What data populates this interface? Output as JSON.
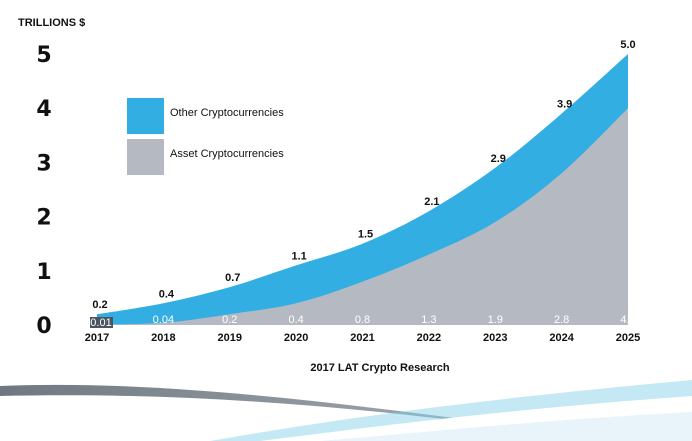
{
  "chart_data": {
    "type": "area",
    "stacked": true,
    "unit_label": "TRILLIONS $",
    "x": [
      "2017",
      "2018",
      "2019",
      "2020",
      "2021",
      "2022",
      "2023",
      "2024",
      "2025"
    ],
    "y_ticks": [
      "0",
      "1",
      "2",
      "3",
      "4",
      "5"
    ],
    "ylim": [
      0,
      5
    ],
    "grid": false,
    "legend_position": "top-left",
    "series": [
      {
        "name": "Asset Cryptocurrencies",
        "color": "#b5bac2",
        "values": [
          0.01,
          0.04,
          0.2,
          0.4,
          0.8,
          1.3,
          1.9,
          2.8,
          4.0
        ],
        "labels": [
          "0.01",
          "0.04",
          "0.2",
          "0.4",
          "0.8",
          "1.3",
          "1.9",
          "2.8",
          "4.0"
        ]
      },
      {
        "name": "Other Cryptocurrencies",
        "color": "#33aee3",
        "totals": [
          0.2,
          0.4,
          0.7,
          1.1,
          1.5,
          2.1,
          2.9,
          3.9,
          5.0
        ],
        "total_labels": [
          "0.2",
          "0.4",
          "0.7",
          "1.1",
          "1.5",
          "2.1",
          "2.9",
          "3.9",
          "5.0"
        ]
      }
    ],
    "source": "2017 LAT Crypto Research"
  }
}
